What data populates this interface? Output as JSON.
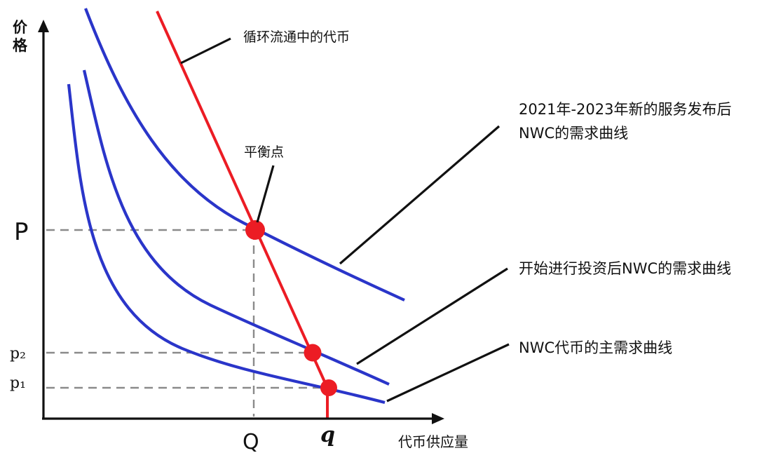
{
  "axes": {
    "y_label_line1": "价",
    "y_label_line2": "格",
    "x_label": "代币供应量",
    "y_ticks": {
      "P": "P",
      "p2": "p₂",
      "p1": "p₁"
    },
    "x_ticks": {
      "Q": "Q",
      "q": "q"
    }
  },
  "annotations": {
    "supply": "循环流通中的代币",
    "equilibrium": "平衡点",
    "demand_top_line1": "2021年-2023年新的服务发布后",
    "demand_top_line2": "NWC的需求曲线",
    "demand_mid": "开始进行投资后NWC的需求曲线",
    "demand_base": "NWC代币的主需求曲线"
  },
  "colors": {
    "supply_line": "#ec1c24",
    "demand_curves": "#2a35c9",
    "guide_lines": "#8a8a8a",
    "axes": "#111111"
  }
}
